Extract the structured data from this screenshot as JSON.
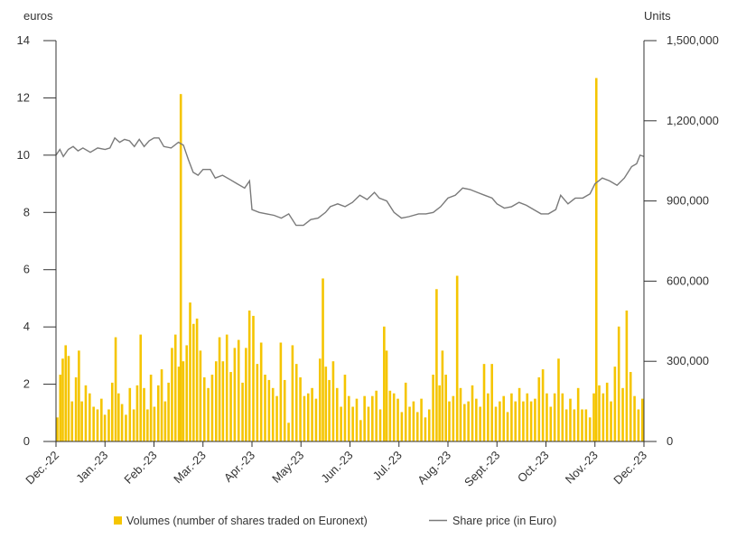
{
  "chart_data": {
    "type": "bar+line",
    "title": "",
    "left_axis": {
      "label": "euros",
      "min": 0,
      "max": 14,
      "ticks": [
        0,
        2,
        4,
        6,
        8,
        10,
        12,
        14
      ]
    },
    "right_axis": {
      "label": "Units",
      "min": 0,
      "max": 1500000,
      "ticks": [
        0,
        300000,
        600000,
        900000,
        1200000,
        1500000
      ],
      "tick_labels": [
        "0",
        "300,000",
        "600,000",
        "900,000",
        "1,200,000",
        "1,500,000"
      ]
    },
    "x_axis": {
      "labels": [
        "Dec.-22",
        "Jan.-23",
        "Feb.-23",
        "Mar.-23",
        "Apr.-23",
        "May-23",
        "Jun.-23",
        "Jul.-23",
        "Aug.-23",
        "Sept.-23",
        "Oct.-23",
        "Nov.-23",
        "Dec.-23"
      ]
    },
    "legend": {
      "placement": "bottom",
      "volume_label": "Volumes (number of shares traded on Euronext)",
      "price_label": "Share price (in Euro)"
    },
    "colors": {
      "volume": "#F5C500",
      "price": "#7a7a7a",
      "axis": "#333333"
    },
    "price_series": [
      {
        "m": 0.0,
        "p": 10.0
      },
      {
        "m": 0.08,
        "p": 10.2
      },
      {
        "m": 0.15,
        "p": 9.95
      },
      {
        "m": 0.25,
        "p": 10.2
      },
      {
        "m": 0.35,
        "p": 10.3
      },
      {
        "m": 0.45,
        "p": 10.15
      },
      {
        "m": 0.55,
        "p": 10.25
      },
      {
        "m": 0.7,
        "p": 10.1
      },
      {
        "m": 0.85,
        "p": 10.25
      },
      {
        "m": 1.0,
        "p": 10.2
      },
      {
        "m": 1.1,
        "p": 10.25
      },
      {
        "m": 1.2,
        "p": 10.6
      },
      {
        "m": 1.3,
        "p": 10.45
      },
      {
        "m": 1.4,
        "p": 10.55
      },
      {
        "m": 1.5,
        "p": 10.5
      },
      {
        "m": 1.6,
        "p": 10.3
      },
      {
        "m": 1.7,
        "p": 10.55
      },
      {
        "m": 1.8,
        "p": 10.3
      },
      {
        "m": 1.9,
        "p": 10.5
      },
      {
        "m": 2.0,
        "p": 10.6
      },
      {
        "m": 2.1,
        "p": 10.6
      },
      {
        "m": 2.2,
        "p": 10.3
      },
      {
        "m": 2.35,
        "p": 10.25
      },
      {
        "m": 2.5,
        "p": 10.45
      },
      {
        "m": 2.6,
        "p": 10.35
      },
      {
        "m": 2.7,
        "p": 9.85
      },
      {
        "m": 2.8,
        "p": 9.4
      },
      {
        "m": 2.9,
        "p": 9.3
      },
      {
        "m": 3.0,
        "p": 9.5
      },
      {
        "m": 3.15,
        "p": 9.5
      },
      {
        "m": 3.25,
        "p": 9.2
      },
      {
        "m": 3.4,
        "p": 9.3
      },
      {
        "m": 3.55,
        "p": 9.15
      },
      {
        "m": 3.7,
        "p": 9.0
      },
      {
        "m": 3.85,
        "p": 8.85
      },
      {
        "m": 3.95,
        "p": 9.1
      },
      {
        "m": 4.0,
        "p": 8.1
      },
      {
        "m": 4.15,
        "p": 8.0
      },
      {
        "m": 4.3,
        "p": 7.95
      },
      {
        "m": 4.45,
        "p": 7.9
      },
      {
        "m": 4.6,
        "p": 7.8
      },
      {
        "m": 4.75,
        "p": 7.95
      },
      {
        "m": 4.9,
        "p": 7.55
      },
      {
        "m": 5.05,
        "p": 7.55
      },
      {
        "m": 5.2,
        "p": 7.75
      },
      {
        "m": 5.35,
        "p": 7.8
      },
      {
        "m": 5.5,
        "p": 8.0
      },
      {
        "m": 5.6,
        "p": 8.2
      },
      {
        "m": 5.75,
        "p": 8.3
      },
      {
        "m": 5.9,
        "p": 8.2
      },
      {
        "m": 6.05,
        "p": 8.35
      },
      {
        "m": 6.2,
        "p": 8.6
      },
      {
        "m": 6.35,
        "p": 8.45
      },
      {
        "m": 6.5,
        "p": 8.7
      },
      {
        "m": 6.6,
        "p": 8.5
      },
      {
        "m": 6.75,
        "p": 8.4
      },
      {
        "m": 6.9,
        "p": 8.0
      },
      {
        "m": 7.05,
        "p": 7.8
      },
      {
        "m": 7.2,
        "p": 7.85
      },
      {
        "m": 7.4,
        "p": 7.95
      },
      {
        "m": 7.55,
        "p": 7.95
      },
      {
        "m": 7.7,
        "p": 8.0
      },
      {
        "m": 7.85,
        "p": 8.2
      },
      {
        "m": 8.0,
        "p": 8.5
      },
      {
        "m": 8.15,
        "p": 8.6
      },
      {
        "m": 8.3,
        "p": 8.85
      },
      {
        "m": 8.45,
        "p": 8.8
      },
      {
        "m": 8.6,
        "p": 8.7
      },
      {
        "m": 8.75,
        "p": 8.6
      },
      {
        "m": 8.9,
        "p": 8.5
      },
      {
        "m": 9.0,
        "p": 8.3
      },
      {
        "m": 9.15,
        "p": 8.15
      },
      {
        "m": 9.3,
        "p": 8.2
      },
      {
        "m": 9.45,
        "p": 8.35
      },
      {
        "m": 9.6,
        "p": 8.25
      },
      {
        "m": 9.75,
        "p": 8.1
      },
      {
        "m": 9.9,
        "p": 7.95
      },
      {
        "m": 10.05,
        "p": 7.95
      },
      {
        "m": 10.2,
        "p": 8.1
      },
      {
        "m": 10.3,
        "p": 8.6
      },
      {
        "m": 10.45,
        "p": 8.3
      },
      {
        "m": 10.6,
        "p": 8.5
      },
      {
        "m": 10.75,
        "p": 8.5
      },
      {
        "m": 10.9,
        "p": 8.65
      },
      {
        "m": 11.0,
        "p": 9.0
      },
      {
        "m": 11.15,
        "p": 9.2
      },
      {
        "m": 11.3,
        "p": 9.1
      },
      {
        "m": 11.45,
        "p": 8.95
      },
      {
        "m": 11.6,
        "p": 9.2
      },
      {
        "m": 11.75,
        "p": 9.6
      },
      {
        "m": 11.85,
        "p": 9.7
      },
      {
        "m": 11.92,
        "p": 10.0
      },
      {
        "m": 12.0,
        "p": 9.95
      }
    ],
    "volume_series": [
      {
        "m": 0.0,
        "v": 90000
      },
      {
        "m": 0.06,
        "v": 250000
      },
      {
        "m": 0.11,
        "v": 310000
      },
      {
        "m": 0.17,
        "v": 360000
      },
      {
        "m": 0.23,
        "v": 320000
      },
      {
        "m": 0.3,
        "v": 150000
      },
      {
        "m": 0.38,
        "v": 240000
      },
      {
        "m": 0.44,
        "v": 340000
      },
      {
        "m": 0.5,
        "v": 150000
      },
      {
        "m": 0.58,
        "v": 210000
      },
      {
        "m": 0.66,
        "v": 180000
      },
      {
        "m": 0.74,
        "v": 130000
      },
      {
        "m": 0.82,
        "v": 120000
      },
      {
        "m": 0.9,
        "v": 160000
      },
      {
        "m": 0.97,
        "v": 100000
      },
      {
        "m": 1.05,
        "v": 120000
      },
      {
        "m": 1.12,
        "v": 220000
      },
      {
        "m": 1.19,
        "v": 390000
      },
      {
        "m": 1.25,
        "v": 180000
      },
      {
        "m": 1.32,
        "v": 140000
      },
      {
        "m": 1.4,
        "v": 100000
      },
      {
        "m": 1.48,
        "v": 200000
      },
      {
        "m": 1.56,
        "v": 120000
      },
      {
        "m": 1.63,
        "v": 210000
      },
      {
        "m": 1.7,
        "v": 400000
      },
      {
        "m": 1.77,
        "v": 200000
      },
      {
        "m": 1.84,
        "v": 120000
      },
      {
        "m": 1.91,
        "v": 250000
      },
      {
        "m": 1.98,
        "v": 130000
      },
      {
        "m": 2.06,
        "v": 210000
      },
      {
        "m": 2.13,
        "v": 270000
      },
      {
        "m": 2.2,
        "v": 150000
      },
      {
        "m": 2.27,
        "v": 220000
      },
      {
        "m": 2.34,
        "v": 350000
      },
      {
        "m": 2.41,
        "v": 400000
      },
      {
        "m": 2.48,
        "v": 280000
      },
      {
        "m": 2.52,
        "v": 1300000
      },
      {
        "m": 2.57,
        "v": 300000
      },
      {
        "m": 2.64,
        "v": 360000
      },
      {
        "m": 2.71,
        "v": 520000
      },
      {
        "m": 2.78,
        "v": 440000
      },
      {
        "m": 2.85,
        "v": 460000
      },
      {
        "m": 2.92,
        "v": 340000
      },
      {
        "m": 3.0,
        "v": 240000
      },
      {
        "m": 3.08,
        "v": 200000
      },
      {
        "m": 3.16,
        "v": 250000
      },
      {
        "m": 3.24,
        "v": 300000
      },
      {
        "m": 3.31,
        "v": 390000
      },
      {
        "m": 3.38,
        "v": 300000
      },
      {
        "m": 3.46,
        "v": 400000
      },
      {
        "m": 3.54,
        "v": 260000
      },
      {
        "m": 3.62,
        "v": 350000
      },
      {
        "m": 3.7,
        "v": 380000
      },
      {
        "m": 3.78,
        "v": 220000
      },
      {
        "m": 3.85,
        "v": 350000
      },
      {
        "m": 3.92,
        "v": 490000
      },
      {
        "m": 4.0,
        "v": 470000
      },
      {
        "m": 4.08,
        "v": 290000
      },
      {
        "m": 4.16,
        "v": 370000
      },
      {
        "m": 4.24,
        "v": 250000
      },
      {
        "m": 4.32,
        "v": 230000
      },
      {
        "m": 4.4,
        "v": 200000
      },
      {
        "m": 4.48,
        "v": 170000
      },
      {
        "m": 4.56,
        "v": 370000
      },
      {
        "m": 4.64,
        "v": 230000
      },
      {
        "m": 4.72,
        "v": 70000
      },
      {
        "m": 4.8,
        "v": 360000
      },
      {
        "m": 4.88,
        "v": 290000
      },
      {
        "m": 4.96,
        "v": 240000
      },
      {
        "m": 5.04,
        "v": 170000
      },
      {
        "m": 5.12,
        "v": 180000
      },
      {
        "m": 5.2,
        "v": 200000
      },
      {
        "m": 5.28,
        "v": 160000
      },
      {
        "m": 5.36,
        "v": 310000
      },
      {
        "m": 5.42,
        "v": 610000
      },
      {
        "m": 5.48,
        "v": 280000
      },
      {
        "m": 5.55,
        "v": 230000
      },
      {
        "m": 5.63,
        "v": 300000
      },
      {
        "m": 5.71,
        "v": 200000
      },
      {
        "m": 5.79,
        "v": 130000
      },
      {
        "m": 5.87,
        "v": 250000
      },
      {
        "m": 5.95,
        "v": 170000
      },
      {
        "m": 6.03,
        "v": 130000
      },
      {
        "m": 6.11,
        "v": 160000
      },
      {
        "m": 6.19,
        "v": 80000
      },
      {
        "m": 6.27,
        "v": 170000
      },
      {
        "m": 6.35,
        "v": 130000
      },
      {
        "m": 6.43,
        "v": 170000
      },
      {
        "m": 6.51,
        "v": 190000
      },
      {
        "m": 6.59,
        "v": 120000
      },
      {
        "m": 6.67,
        "v": 430000
      },
      {
        "m": 6.72,
        "v": 340000
      },
      {
        "m": 6.79,
        "v": 190000
      },
      {
        "m": 6.87,
        "v": 180000
      },
      {
        "m": 6.95,
        "v": 160000
      },
      {
        "m": 7.03,
        "v": 110000
      },
      {
        "m": 7.11,
        "v": 220000
      },
      {
        "m": 7.19,
        "v": 130000
      },
      {
        "m": 7.27,
        "v": 150000
      },
      {
        "m": 7.35,
        "v": 110000
      },
      {
        "m": 7.43,
        "v": 160000
      },
      {
        "m": 7.51,
        "v": 90000
      },
      {
        "m": 7.59,
        "v": 120000
      },
      {
        "m": 7.67,
        "v": 250000
      },
      {
        "m": 7.74,
        "v": 570000
      },
      {
        "m": 7.8,
        "v": 210000
      },
      {
        "m": 7.86,
        "v": 340000
      },
      {
        "m": 7.93,
        "v": 250000
      },
      {
        "m": 8.0,
        "v": 150000
      },
      {
        "m": 8.08,
        "v": 170000
      },
      {
        "m": 8.16,
        "v": 620000
      },
      {
        "m": 8.23,
        "v": 200000
      },
      {
        "m": 8.31,
        "v": 140000
      },
      {
        "m": 8.39,
        "v": 150000
      },
      {
        "m": 8.47,
        "v": 210000
      },
      {
        "m": 8.55,
        "v": 160000
      },
      {
        "m": 8.63,
        "v": 130000
      },
      {
        "m": 8.71,
        "v": 290000
      },
      {
        "m": 8.79,
        "v": 180000
      },
      {
        "m": 8.87,
        "v": 290000
      },
      {
        "m": 8.95,
        "v": 130000
      },
      {
        "m": 9.03,
        "v": 150000
      },
      {
        "m": 9.11,
        "v": 170000
      },
      {
        "m": 9.19,
        "v": 110000
      },
      {
        "m": 9.27,
        "v": 180000
      },
      {
        "m": 9.35,
        "v": 150000
      },
      {
        "m": 9.43,
        "v": 200000
      },
      {
        "m": 9.51,
        "v": 150000
      },
      {
        "m": 9.59,
        "v": 180000
      },
      {
        "m": 9.67,
        "v": 150000
      },
      {
        "m": 9.75,
        "v": 160000
      },
      {
        "m": 9.83,
        "v": 240000
      },
      {
        "m": 9.91,
        "v": 270000
      },
      {
        "m": 9.99,
        "v": 180000
      },
      {
        "m": 10.07,
        "v": 130000
      },
      {
        "m": 10.15,
        "v": 180000
      },
      {
        "m": 10.23,
        "v": 310000
      },
      {
        "m": 10.31,
        "v": 180000
      },
      {
        "m": 10.39,
        "v": 120000
      },
      {
        "m": 10.47,
        "v": 160000
      },
      {
        "m": 10.55,
        "v": 120000
      },
      {
        "m": 10.63,
        "v": 200000
      },
      {
        "m": 10.71,
        "v": 120000
      },
      {
        "m": 10.79,
        "v": 120000
      },
      {
        "m": 10.87,
        "v": 90000
      },
      {
        "m": 10.95,
        "v": 180000
      },
      {
        "m": 11.0,
        "v": 1360000
      },
      {
        "m": 11.06,
        "v": 210000
      },
      {
        "m": 11.14,
        "v": 180000
      },
      {
        "m": 11.22,
        "v": 220000
      },
      {
        "m": 11.3,
        "v": 150000
      },
      {
        "m": 11.38,
        "v": 280000
      },
      {
        "m": 11.46,
        "v": 430000
      },
      {
        "m": 11.54,
        "v": 200000
      },
      {
        "m": 11.62,
        "v": 490000
      },
      {
        "m": 11.7,
        "v": 260000
      },
      {
        "m": 11.78,
        "v": 170000
      },
      {
        "m": 11.86,
        "v": 120000
      },
      {
        "m": 11.94,
        "v": 160000
      }
    ]
  }
}
